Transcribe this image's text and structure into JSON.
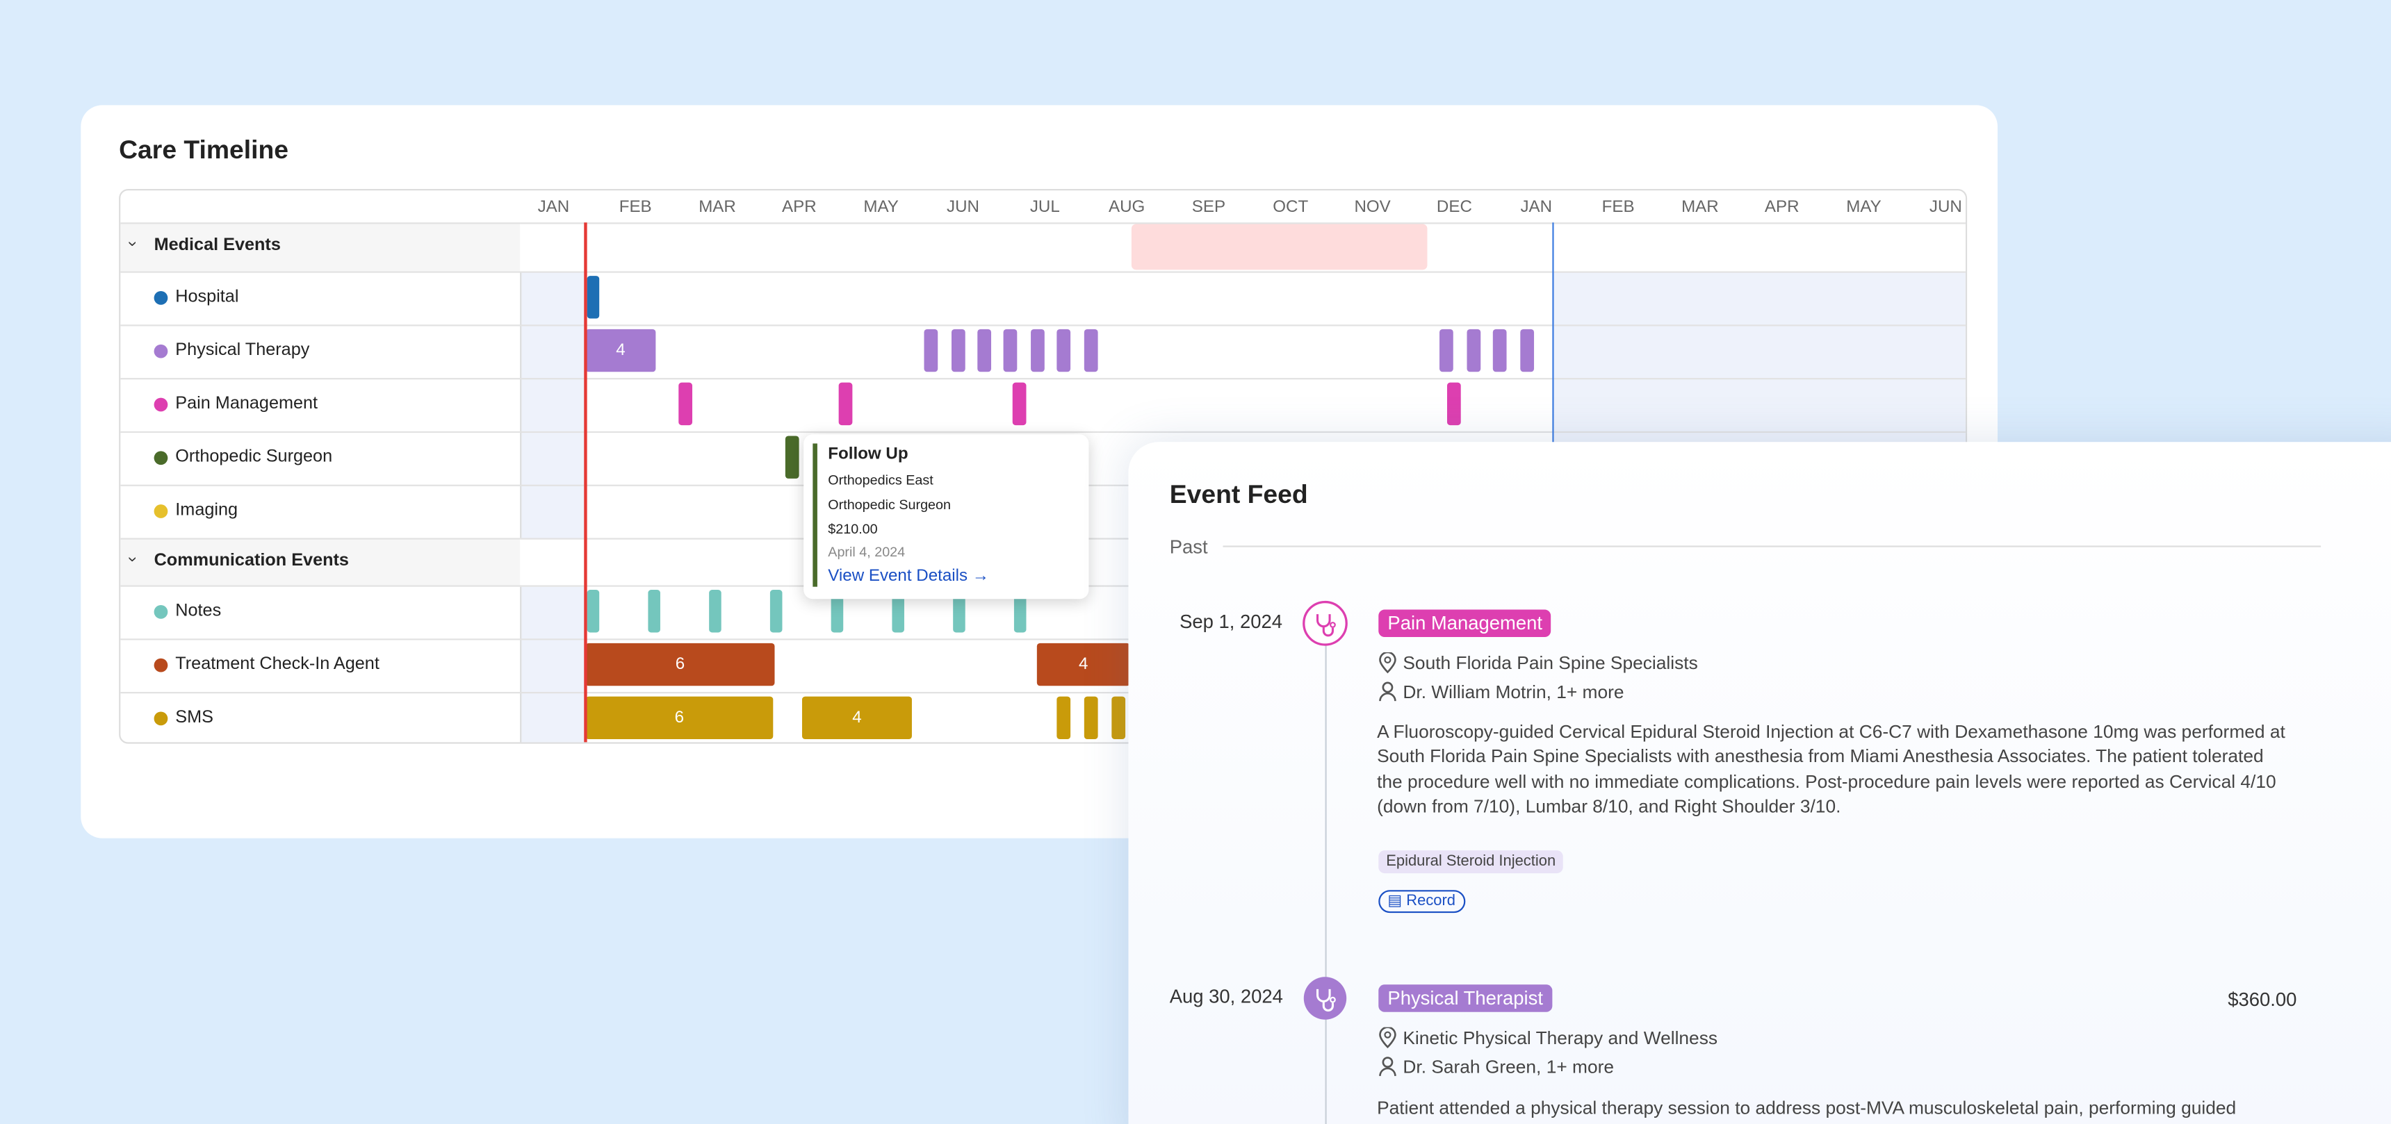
{
  "timeline": {
    "title": "Care Timeline",
    "months": [
      "JAN",
      "FEB",
      "MAR",
      "APR",
      "MAY",
      "JUN",
      "JUL",
      "AUG",
      "SEP",
      "OCT",
      "NOV",
      "DEC",
      "JAN",
      "FEB",
      "MAR",
      "APR",
      "MAY",
      "JUN"
    ],
    "groups": [
      {
        "name": "Medical Events",
        "rows": [
          {
            "name": "Hospital",
            "color": "#1d6fb4"
          },
          {
            "name": "Physical Therapy",
            "color": "#a57bd1",
            "counts": [
              4
            ]
          },
          {
            "name": "Pain Management",
            "color": "#dd3fb0"
          },
          {
            "name": "Orthopedic Surgeon",
            "color": "#4a6b2a"
          },
          {
            "name": "Imaging",
            "color": "#e6c02c"
          }
        ]
      },
      {
        "name": "Communication Events",
        "rows": [
          {
            "name": "Notes",
            "color": "#74c6bd"
          },
          {
            "name": "Treatment Check-In Agent",
            "color": "#b84a1d",
            "counts": [
              6,
              4
            ]
          },
          {
            "name": "SMS",
            "color": "#c99b0a",
            "counts": [
              6,
              4
            ]
          }
        ]
      }
    ]
  },
  "tooltip": {
    "title": "Follow Up",
    "lines": [
      "Orthopedics East",
      "Orthopedic Surgeon",
      "$210.00"
    ],
    "date": "April 4, 2024",
    "link": "View Event Details"
  },
  "feed": {
    "title": "Event Feed",
    "section": "Past",
    "events": [
      {
        "date": "Sep 1, 2024",
        "tag": "Pain Management",
        "location": "South Florida Pain Spine Specialists",
        "provider": "Dr. William Motrin, 1+ more",
        "description": "A Fluoroscopy-guided Cervical Epidural Steroid Injection at C6-C7 with Dexamethasone 10mg was performed at South Florida Pain Spine Specialists with anesthesia from Miami Anesthesia Associates. The patient tolerated the procedure well with no immediate complications. Post-procedure pain levels were reported as Cervical 4/10 (down from 7/10), Lumbar 8/10, and Right Shoulder 3/10.",
        "procedure": "Epidural Steroid Injection",
        "button": "Record"
      },
      {
        "date": "Aug 30, 2024",
        "tag": "Physical Therapist",
        "price": "$360.00",
        "location": "Kinetic Physical Therapy and Wellness",
        "provider": "Dr. Sarah Green, 1+ more",
        "description": "Patient attended a physical therapy session to address post-MVA musculoskeletal pain, performing guided"
      }
    ]
  }
}
